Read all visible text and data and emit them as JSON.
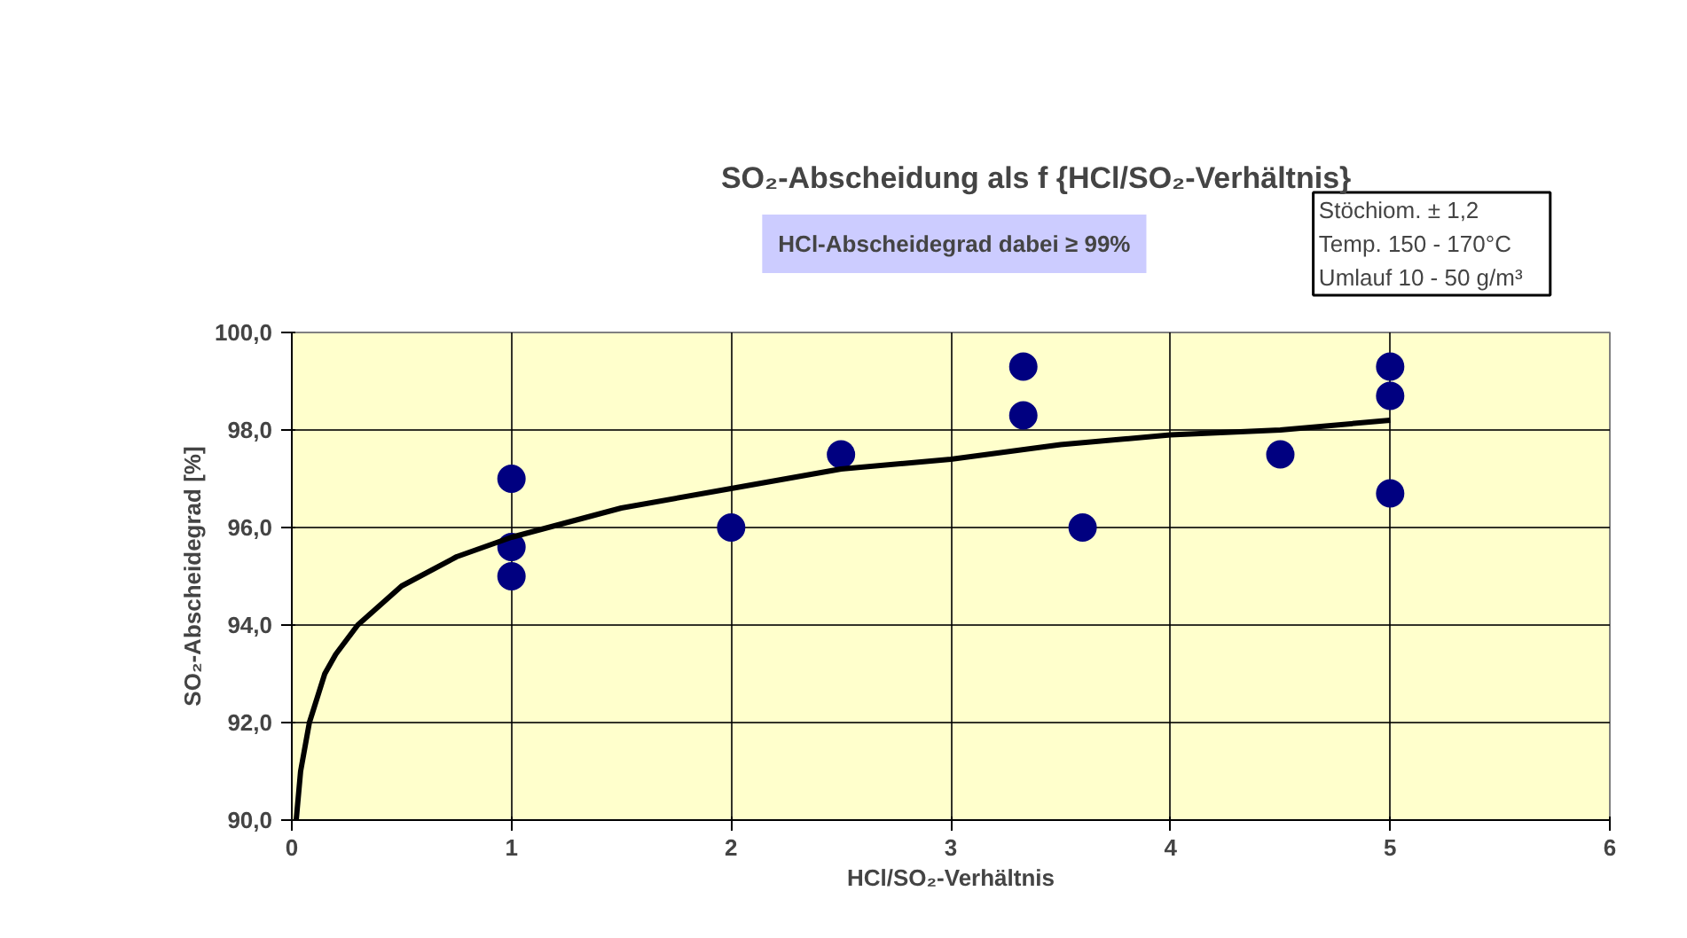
{
  "chart_data": {
    "type": "scatter",
    "title": "SO₂-Abscheidung als f {HCl/SO₂-Verhältnis}",
    "xlabel": "HCl/SO₂-Verhältnis",
    "ylabel": "SO₂-Abscheidegrad [%]",
    "annotations": [
      "HCl-Abscheidegrad dabei ≥ 99%",
      "Stöchiom. ± 1,2",
      "Temp. 150 - 170°C",
      "Umlauf 10 - 50 g/m³"
    ],
    "series": [
      {
        "color": "#000080",
        "marker": "circle",
        "x": [
          1,
          1,
          1,
          2,
          2.5,
          3.33,
          3.33,
          3.6,
          4.5,
          5,
          5,
          5
        ],
        "values": [
          97.0,
          95.6,
          95.0,
          96.0,
          97.5,
          99.3,
          98.3,
          96.0,
          97.5,
          99.3,
          98.7,
          96.7
        ]
      },
      {
        "type": "line",
        "color": "#000000",
        "marker": "none",
        "x": [
          0.02,
          0.04,
          0.08,
          0.15,
          0.2,
          0.3,
          0.5,
          0.75,
          1,
          1.5,
          2,
          2.5,
          3,
          3.5,
          4,
          4.5,
          5
        ],
        "values": [
          90.0,
          91.0,
          92.0,
          93.0,
          93.4,
          94.0,
          94.8,
          95.4,
          95.8,
          96.4,
          96.8,
          97.2,
          97.4,
          97.7,
          97.9,
          98.0,
          98.2
        ]
      }
    ],
    "xlim": [
      0,
      6
    ],
    "ylim": [
      90,
      100
    ],
    "xticks": [
      0,
      1,
      2,
      3,
      4,
      5,
      6
    ],
    "yticks": [
      {
        "value": 90,
        "label": "90,0"
      },
      {
        "value": 92,
        "label": "92,0"
      },
      {
        "value": 94,
        "label": "94,0"
      },
      {
        "value": 96,
        "label": "96,0"
      },
      {
        "value": 98,
        "label": "98,0"
      },
      {
        "value": 100,
        "label": "100,0"
      }
    ],
    "grid": true
  }
}
